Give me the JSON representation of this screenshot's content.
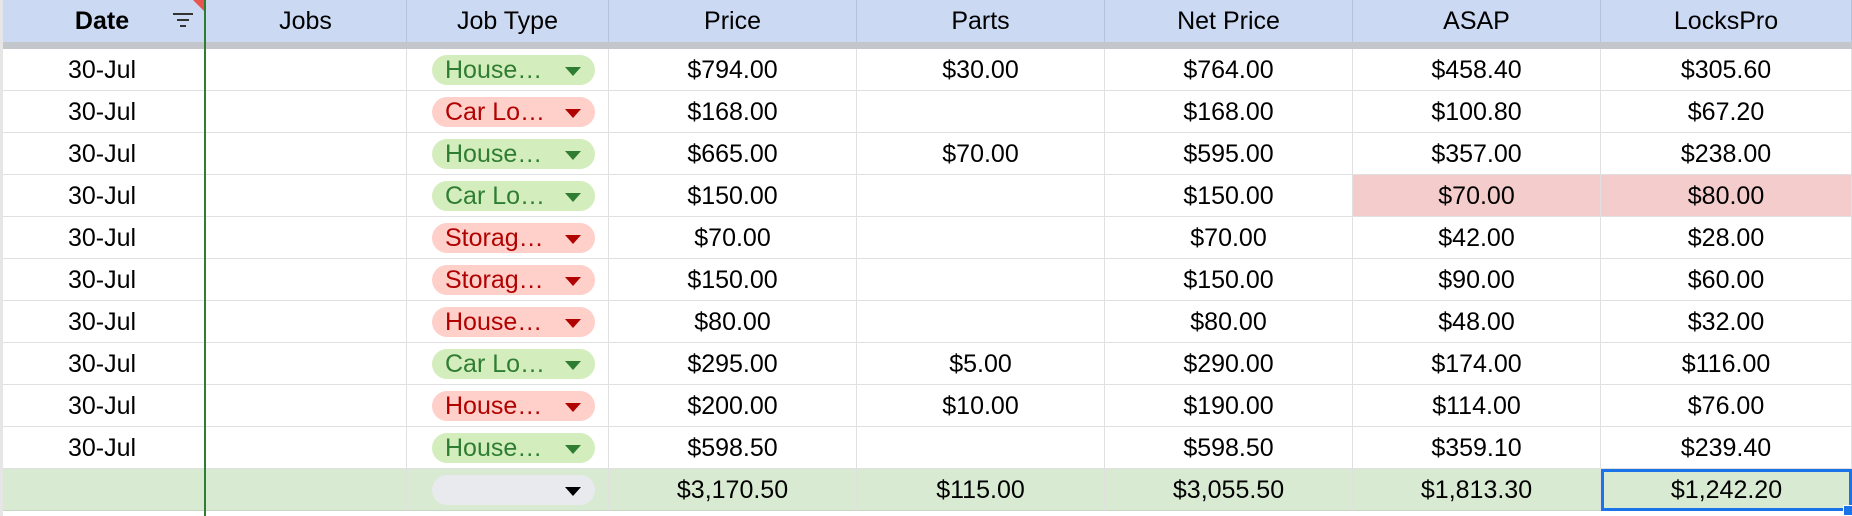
{
  "columns": [
    {
      "label": "Date"
    },
    {
      "label": "Jobs"
    },
    {
      "label": "Job Type"
    },
    {
      "label": "Price"
    },
    {
      "label": "Parts"
    },
    {
      "label": "Net Price"
    },
    {
      "label": "ASAP"
    },
    {
      "label": "LocksPro"
    }
  ],
  "rows": [
    {
      "date": "30-Jul",
      "jobs": "",
      "job_type": "House…",
      "job_type_color": "green",
      "price": "$794.00",
      "parts": "$30.00",
      "net": "$764.00",
      "asap": "$458.40",
      "lockspro": "$305.60"
    },
    {
      "date": "30-Jul",
      "jobs": "",
      "job_type": "Car Lo…",
      "job_type_color": "red",
      "price": "$168.00",
      "parts": "",
      "net": "$168.00",
      "asap": "$100.80",
      "lockspro": "$67.20"
    },
    {
      "date": "30-Jul",
      "jobs": "",
      "job_type": "House…",
      "job_type_color": "green",
      "price": "$665.00",
      "parts": "$70.00",
      "net": "$595.00",
      "asap": "$357.00",
      "lockspro": "$238.00"
    },
    {
      "date": "30-Jul",
      "jobs": "",
      "job_type": "Car Lo…",
      "job_type_color": "green",
      "price": "$150.00",
      "parts": "",
      "net": "$150.00",
      "asap": "$70.00",
      "lockspro": "$80.00",
      "highlight": true
    },
    {
      "date": "30-Jul",
      "jobs": "",
      "job_type": "Storag…",
      "job_type_color": "red",
      "price": "$70.00",
      "parts": "",
      "net": "$70.00",
      "asap": "$42.00",
      "lockspro": "$28.00"
    },
    {
      "date": "30-Jul",
      "jobs": "",
      "job_type": "Storag…",
      "job_type_color": "red",
      "price": "$150.00",
      "parts": "",
      "net": "$150.00",
      "asap": "$90.00",
      "lockspro": "$60.00"
    },
    {
      "date": "30-Jul",
      "jobs": "",
      "job_type": "House…",
      "job_type_color": "red",
      "price": "$80.00",
      "parts": "",
      "net": "$80.00",
      "asap": "$48.00",
      "lockspro": "$32.00"
    },
    {
      "date": "30-Jul",
      "jobs": "",
      "job_type": "Car Lo…",
      "job_type_color": "green",
      "price": "$295.00",
      "parts": "$5.00",
      "net": "$290.00",
      "asap": "$174.00",
      "lockspro": "$116.00"
    },
    {
      "date": "30-Jul",
      "jobs": "",
      "job_type": "House…",
      "job_type_color": "red",
      "price": "$200.00",
      "parts": "$10.00",
      "net": "$190.00",
      "asap": "$114.00",
      "lockspro": "$76.00"
    },
    {
      "date": "30-Jul",
      "jobs": "",
      "job_type": "House…",
      "job_type_color": "green",
      "price": "$598.50",
      "parts": "",
      "net": "$598.50",
      "asap": "$359.10",
      "lockspro": "$239.40"
    }
  ],
  "totals": {
    "date": "",
    "jobs": "",
    "job_type": "",
    "job_type_color": "empty",
    "price": "$3,170.50",
    "parts": "$115.00",
    "net": "$3,055.50",
    "asap": "$1,813.30",
    "lockspro": "$1,242.20"
  },
  "colors": {
    "header_bg": "#cbd9f3",
    "chip_green_bg": "#d4edbc",
    "chip_green_text": "#2f7d32",
    "chip_red_bg": "#ffcfc9",
    "chip_red_text": "#b10202",
    "highlight_bg": "#f4cccc",
    "totals_bg": "#d9ead3",
    "selection": "#1a73e8"
  },
  "icons": {
    "filter": "filter-icon",
    "dropdown": "dropdown-arrow-icon"
  }
}
